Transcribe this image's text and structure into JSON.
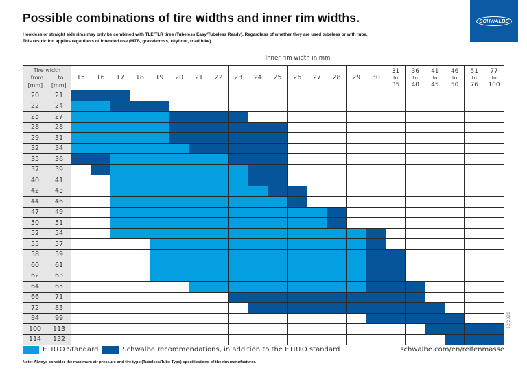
{
  "title": "Possible combinations of tire widths and inner rim widths.",
  "subtitle_lines": [
    "Hookless or straight side rims may only be combined with TLE/TLR tires (Tubeless Easy/Tubeless Ready). Regardless of whether they are used tubeless or with tube.",
    "This restriction applies regardless of intended use (MTB, gravel/cross, city/tour, road bike)."
  ],
  "logo_text": "SCHWALBE",
  "chart_data": {
    "type": "table",
    "title": "Possible combinations of tire widths and inner rim widths.",
    "column_axis_label": "Inner rim width in mm",
    "row_header": {
      "label": "Tire width",
      "from": "from",
      "to": "to",
      "unit": "[mm]"
    },
    "columns": [
      {
        "from": "15"
      },
      {
        "from": "16"
      },
      {
        "from": "17"
      },
      {
        "from": "18"
      },
      {
        "from": "19"
      },
      {
        "from": "20"
      },
      {
        "from": "21"
      },
      {
        "from": "22"
      },
      {
        "from": "23"
      },
      {
        "from": "24"
      },
      {
        "from": "25"
      },
      {
        "from": "26"
      },
      {
        "from": "27"
      },
      {
        "from": "28"
      },
      {
        "from": "29"
      },
      {
        "from": "30"
      },
      {
        "from": "31",
        "sep": "to",
        "to": "35"
      },
      {
        "from": "36",
        "sep": "to",
        "to": "40"
      },
      {
        "from": "41",
        "sep": "to",
        "to": "45"
      },
      {
        "from": "46",
        "sep": "to",
        "to": "50"
      },
      {
        "from": "51",
        "sep": "to",
        "to": "76"
      },
      {
        "from": "77",
        "sep": "to",
        "to": "100"
      }
    ],
    "legend": {
      "E": {
        "label": "ETRTO Standard",
        "color": "#049fe0"
      },
      "S": {
        "label": "Schwalbe recommendations, in addition to the ETRTO standard",
        "color": "#06549a"
      },
      "-": {
        "label": "",
        "color": "#ffffff"
      }
    },
    "rows": [
      {
        "from": "20",
        "to": "21",
        "cells": "SSS-------------------"
      },
      {
        "from": "22",
        "to": "24",
        "cells": "EESSS-----------------"
      },
      {
        "from": "25",
        "to": "27",
        "cells": "EEEEESSSS-------------"
      },
      {
        "from": "28",
        "to": "28",
        "cells": "EEEEESSSSSS-----------"
      },
      {
        "from": "29",
        "to": "31",
        "cells": "EEEEESSSSSS-----------"
      },
      {
        "from": "32",
        "to": "34",
        "cells": "EEEEEESSSSS-----------"
      },
      {
        "from": "35",
        "to": "36",
        "cells": "SSEEEEEESSS-----------"
      },
      {
        "from": "37",
        "to": "39",
        "cells": "-SEEEEEEESS-----------"
      },
      {
        "from": "40",
        "to": "41",
        "cells": "--EEEEEEESS-----------"
      },
      {
        "from": "42",
        "to": "43",
        "cells": "--EEEEEEEESS----------"
      },
      {
        "from": "44",
        "to": "46",
        "cells": "--EEEEEEEEES----------"
      },
      {
        "from": "47",
        "to": "49",
        "cells": "--EEEEEEEEEEES--------"
      },
      {
        "from": "50",
        "to": "51",
        "cells": "--EEEEEEEEEEES--------"
      },
      {
        "from": "52",
        "to": "54",
        "cells": "--EEEEEEEEEEEEES------"
      },
      {
        "from": "55",
        "to": "57",
        "cells": "----EEEEEEEEEEES------"
      },
      {
        "from": "58",
        "to": "59",
        "cells": "----EEEEEEEEEEESS-----"
      },
      {
        "from": "60",
        "to": "61",
        "cells": "----EEEEEEEEEEESS-----"
      },
      {
        "from": "62",
        "to": "63",
        "cells": "----EEEEEEEEEEESS-----"
      },
      {
        "from": "64",
        "to": "65",
        "cells": "------EEEEEEEEESSS----"
      },
      {
        "from": "66",
        "to": "71",
        "cells": "--------SSSSSSSSSS----"
      },
      {
        "from": "72",
        "to": "83",
        "cells": "---------SSSSSSSSSS---"
      },
      {
        "from": "84",
        "to": "99",
        "cells": "---------------SSSSS--"
      },
      {
        "from": "100",
        "to": "113",
        "cells": "------------------SSSS"
      },
      {
        "from": "114",
        "to": "132",
        "cells": "-------------------SSS"
      }
    ]
  },
  "legend_labels": {
    "etrto": "ETRTO Standard",
    "schwalbe": "Schwalbe recommendations, in addition to the ETRTO standard"
  },
  "note": "Note:  Always consider the maximum air pressure and tire type (Tubeless/Tube Type) specifications of the rim manufacturer.",
  "url": "schwalbe.com/en/reifenmasse",
  "date_code": "12/2020"
}
